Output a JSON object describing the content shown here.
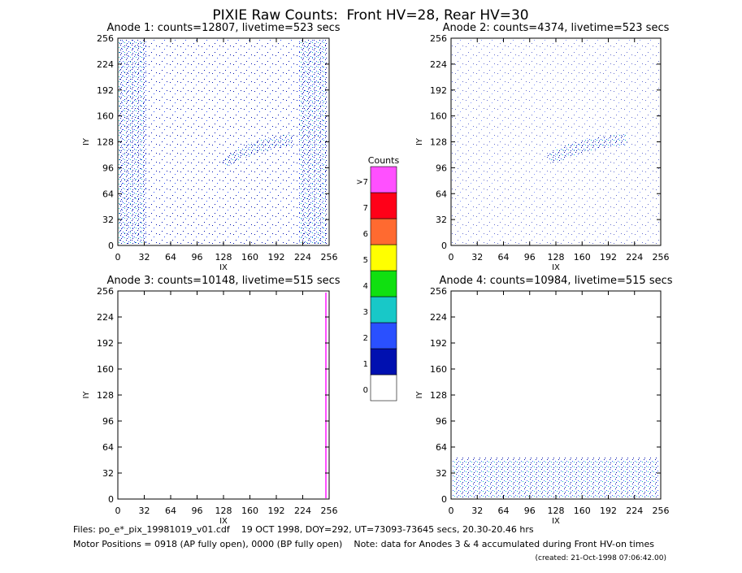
{
  "title": "PIXIE Raw Counts:  Front HV=28, Rear HV=30",
  "panels": [
    {
      "title": "Anode 1: counts=12807, livetime=523 secs",
      "xlabel": "IX",
      "ylabel": "IY",
      "xlim": [
        0,
        256
      ],
      "ylim": [
        0,
        256
      ],
      "xticks": [
        0,
        32,
        64,
        96,
        128,
        160,
        192,
        224,
        256
      ],
      "yticks": [
        0,
        32,
        64,
        96,
        128,
        160,
        192,
        224,
        256
      ]
    },
    {
      "title": "Anode 2: counts=4374, livetime=523 secs",
      "xlabel": "IX",
      "ylabel": "IY",
      "xlim": [
        0,
        256
      ],
      "ylim": [
        0,
        256
      ],
      "xticks": [
        0,
        32,
        64,
        96,
        128,
        160,
        192,
        224,
        256
      ],
      "yticks": [
        0,
        32,
        64,
        96,
        128,
        160,
        192,
        224,
        256
      ]
    },
    {
      "title": "Anode 3: counts=10148, livetime=515 secs",
      "xlabel": "IX",
      "ylabel": "IY",
      "xlim": [
        0,
        256
      ],
      "ylim": [
        0,
        256
      ],
      "xticks": [
        0,
        32,
        64,
        96,
        128,
        160,
        192,
        224,
        256
      ],
      "yticks": [
        0,
        32,
        64,
        96,
        128,
        160,
        192,
        224,
        256
      ]
    },
    {
      "title": "Anode 4: counts=10984, livetime=515 secs",
      "xlabel": "IX",
      "ylabel": "IY",
      "xlim": [
        0,
        256
      ],
      "ylim": [
        0,
        256
      ],
      "xticks": [
        0,
        32,
        64,
        96,
        128,
        160,
        192,
        224,
        256
      ],
      "yticks": [
        0,
        32,
        64,
        96,
        128,
        160,
        192,
        224,
        256
      ]
    }
  ],
  "colorbar": {
    "title": "Counts",
    "levels": [
      {
        "label": "0",
        "color": "#ffffff"
      },
      {
        "label": "1",
        "color": "#0010b0"
      },
      {
        "label": "2",
        "color": "#2a50ff"
      },
      {
        "label": "3",
        "color": "#18c8c8"
      },
      {
        "label": "4",
        "color": "#10e010"
      },
      {
        "label": "5",
        "color": "#ffff00"
      },
      {
        "label": "6",
        "color": "#ff6a30"
      },
      {
        "label": "7",
        "color": "#ff0018"
      },
      {
        "label": ">7",
        "color": "#ff50ff"
      }
    ]
  },
  "footer": {
    "files": "Files: po_e*_pix_19981019_v01.cdf    19 OCT 1998, DOY=292, UT=73093-73645 secs, 20.30-20.46 hrs",
    "motor": "Motor Positions = 0918 (AP fully open), 0000 (BP fully open)    Note: data for Anodes 3 & 4 accumulated during Front HV-on times",
    "created": "(created: 21-Oct-1998 07:06:42.00)"
  }
}
